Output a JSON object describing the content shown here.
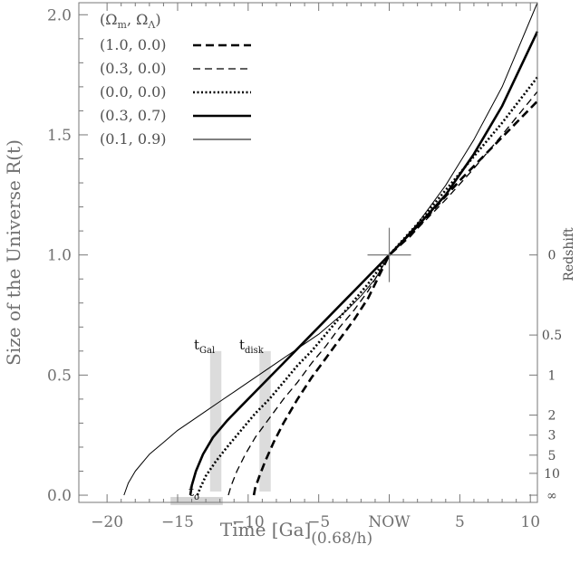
{
  "chart_data": {
    "type": "line",
    "xlabel": "Time [Ga]",
    "xlabel_subscript": "(0.68/h)",
    "ylabel": "Size of the Universe  R(t)",
    "y2label": "Redshift",
    "xlim": [
      -22,
      10.5
    ],
    "ylim": [
      -0.03,
      2.05
    ],
    "x_ticks": [
      {
        "value": -20,
        "label": "−20"
      },
      {
        "value": -15,
        "label": "−15"
      },
      {
        "value": -10,
        "label": "−10"
      },
      {
        "value": -5,
        "label": "−5"
      },
      {
        "value": 0,
        "label": "NOW"
      },
      {
        "value": 5,
        "label": "5"
      },
      {
        "value": 10,
        "label": "10"
      }
    ],
    "y_ticks": [
      {
        "value": 0.0,
        "label": "0.0"
      },
      {
        "value": 0.5,
        "label": "0.5"
      },
      {
        "value": 1.0,
        "label": "1.0"
      },
      {
        "value": 1.5,
        "label": "1.5"
      },
      {
        "value": 2.0,
        "label": "2.0"
      }
    ],
    "redshift_ticks": [
      {
        "z": "0",
        "r": 1.0
      },
      {
        "z": "0.5",
        "r": 0.6667
      },
      {
        "z": "1",
        "r": 0.5
      },
      {
        "z": "2",
        "r": 0.3333
      },
      {
        "z": "3",
        "r": 0.25
      },
      {
        "z": "5",
        "r": 0.1667
      },
      {
        "z": "10",
        "r": 0.0909
      },
      {
        "z": "∞",
        "r": 0.0
      }
    ],
    "legend": {
      "header_parts": [
        "(Ω",
        "m",
        ",  Ω",
        "Λ",
        ")"
      ],
      "placement": "top-left"
    },
    "series": [
      {
        "name": "(1.0, 0.0)",
        "style": "dashed-thick",
        "x": [
          -9.6,
          -9.5,
          -9.2,
          -8.8,
          -8.2,
          -7.5,
          -6.5,
          -5.5,
          -4.5,
          -3.5,
          -2.5,
          -1.5,
          0,
          1.5,
          3,
          5,
          7,
          9,
          10.5
        ],
        "y": [
          0.0,
          0.03,
          0.08,
          0.14,
          0.22,
          0.3,
          0.4,
          0.49,
          0.57,
          0.65,
          0.73,
          0.82,
          1.0,
          1.08,
          1.18,
          1.31,
          1.43,
          1.55,
          1.64
        ]
      },
      {
        "name": "(0.3, 0.0)",
        "style": "dashed-thin",
        "x": [
          -11.4,
          -11.2,
          -10.8,
          -10.2,
          -9.5,
          -8.5,
          -7.5,
          -6.5,
          -5.5,
          -4.5,
          -3.5,
          -2.5,
          -1.5,
          0,
          2,
          4,
          6,
          8,
          10.5
        ],
        "y": [
          0.0,
          0.04,
          0.1,
          0.17,
          0.24,
          0.32,
          0.4,
          0.47,
          0.55,
          0.62,
          0.7,
          0.77,
          0.85,
          1.0,
          1.11,
          1.23,
          1.36,
          1.5,
          1.68
        ]
      },
      {
        "name": "(0.0, 0.0)",
        "style": "dotted",
        "x": [
          -13.6,
          -13.4,
          -13.0,
          -12.3,
          -11.5,
          -10.5,
          -9.5,
          -8.5,
          -7.5,
          -6.5,
          -5.5,
          -4.5,
          -3.5,
          -2.5,
          -1.5,
          0,
          2,
          4,
          6,
          8,
          10.5
        ],
        "y": [
          0.0,
          0.03,
          0.08,
          0.14,
          0.2,
          0.27,
          0.34,
          0.4,
          0.47,
          0.54,
          0.6,
          0.67,
          0.74,
          0.81,
          0.88,
          1.0,
          1.13,
          1.27,
          1.41,
          1.55,
          1.74
        ]
      },
      {
        "name": "(0.3, 0.7)",
        "style": "solid-thick",
        "x": [
          -14.1,
          -14.0,
          -13.7,
          -13.2,
          -12.5,
          -11.5,
          -10.5,
          -9.5,
          -8.5,
          -7.5,
          -6.5,
          -5.5,
          -4.5,
          -3.5,
          -2.5,
          -1.5,
          0,
          2,
          4,
          6,
          8,
          10.5
        ],
        "y": [
          0.0,
          0.04,
          0.1,
          0.17,
          0.24,
          0.31,
          0.37,
          0.43,
          0.49,
          0.55,
          0.61,
          0.67,
          0.73,
          0.79,
          0.85,
          0.91,
          1.0,
          1.12,
          1.25,
          1.42,
          1.62,
          1.93
        ]
      },
      {
        "name": "(0.1, 0.9)",
        "style": "solid-thin",
        "x": [
          -18.8,
          -18.5,
          -18.0,
          -17.0,
          -16.0,
          -15.0,
          -14.0,
          -13.0,
          -12.0,
          -11.0,
          -10.0,
          -9.0,
          -8.0,
          -7.0,
          -6.0,
          -5.0,
          -4.0,
          -3.0,
          -2.0,
          -1.0,
          0,
          2,
          4,
          6,
          8,
          10.5
        ],
        "y": [
          0.0,
          0.05,
          0.1,
          0.17,
          0.22,
          0.27,
          0.31,
          0.35,
          0.39,
          0.43,
          0.47,
          0.51,
          0.55,
          0.59,
          0.63,
          0.67,
          0.72,
          0.77,
          0.83,
          0.9,
          1.0,
          1.13,
          1.29,
          1.48,
          1.7,
          2.05
        ]
      }
    ],
    "annotations": {
      "t_gal": {
        "label": "t",
        "sub": "Gal",
        "x_from": -12.7,
        "x_to": -11.9,
        "y_top": 0.6
      },
      "t_disk": {
        "label": "t",
        "sub": "disk",
        "x_from": -9.2,
        "x_to": -8.4,
        "y_top": 0.6
      },
      "t_o": {
        "label": "t",
        "sub": "o",
        "x": -13.6,
        "y": 0.03,
        "box_from": -15.5,
        "box_to": -11.8
      }
    }
  }
}
